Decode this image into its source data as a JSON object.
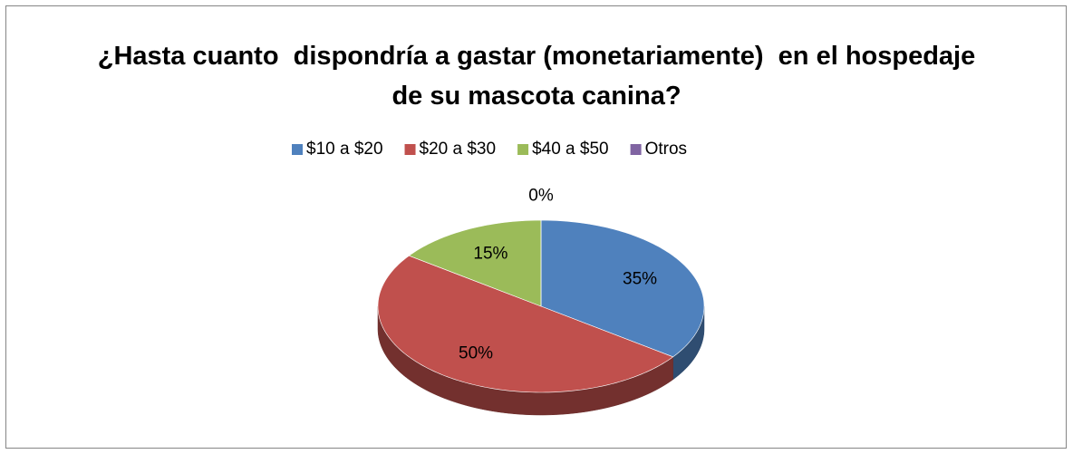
{
  "chart_data": {
    "type": "pie",
    "title": "¿Hasta cuanto  dispondría a gastar (monetariamente)  en el hospedaje de su mascota canina?",
    "categories": [
      "$10 a $20",
      "$20 a $30",
      "$40 a $50",
      "Otros"
    ],
    "values": [
      35,
      50,
      15,
      0
    ],
    "value_labels": [
      "35%",
      "50%",
      "15%",
      "0%"
    ],
    "colors": [
      "#4f81bd",
      "#c0504d",
      "#9bbb59",
      "#8064a2"
    ],
    "legend": "top"
  }
}
